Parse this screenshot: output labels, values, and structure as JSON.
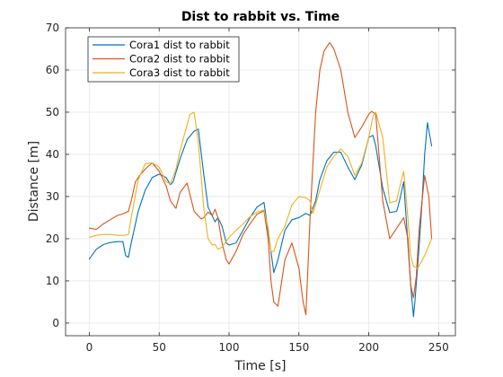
{
  "chart_data": {
    "type": "line",
    "title": "Dist to rabbit vs. Time",
    "xlabel": "Time [s]",
    "ylabel": "Distance [m]",
    "xlim": [
      -17,
      262
    ],
    "ylim": [
      -3,
      70
    ],
    "xticks": [
      0,
      50,
      100,
      150,
      200,
      250
    ],
    "yticks": [
      0,
      10,
      20,
      30,
      40,
      50,
      60,
      70
    ],
    "grid": true,
    "legend_position": "top-left",
    "series": [
      {
        "name": "Cora1 dist to rabbit",
        "color": "#0072BD",
        "x": [
          0,
          5,
          10,
          15,
          20,
          24,
          26,
          28,
          30,
          35,
          40,
          45,
          50,
          55,
          58,
          60,
          65,
          70,
          75,
          78,
          82,
          85,
          90,
          92,
          95,
          98,
          100,
          105,
          110,
          115,
          120,
          125,
          130,
          132,
          135,
          140,
          145,
          150,
          155,
          158,
          162,
          165,
          170,
          175,
          180,
          185,
          190,
          195,
          200,
          203,
          205,
          210,
          215,
          220,
          222,
          225,
          230,
          232,
          233,
          236,
          238,
          240,
          242,
          245
        ],
        "y": [
          15.2,
          17.5,
          18.6,
          19.1,
          19.3,
          19.3,
          16,
          15.6,
          19,
          26.5,
          31.5,
          34.5,
          35.3,
          34.5,
          32.8,
          33.5,
          39,
          43.5,
          45.5,
          46,
          35,
          27.5,
          24,
          25,
          23,
          19,
          18.5,
          19,
          22,
          25,
          27.5,
          28.6,
          17,
          12,
          15,
          22,
          24.5,
          25,
          26,
          25.5,
          29,
          34,
          38.5,
          40.5,
          40.5,
          37,
          34,
          37.5,
          44,
          44.5,
          42,
          32,
          26.2,
          26.5,
          29,
          33.5,
          9,
          1.5,
          5,
          18,
          28,
          40,
          47.5,
          42
        ]
      },
      {
        "name": "Cora2 dist to rabbit",
        "color": "#D95319",
        "x": [
          0,
          5,
          10,
          15,
          20,
          25,
          28,
          30,
          33,
          36,
          40,
          45,
          50,
          55,
          58,
          62,
          65,
          70,
          75,
          80,
          82,
          85,
          88,
          90,
          92,
          95,
          98,
          100,
          105,
          110,
          115,
          120,
          125,
          128,
          130,
          132,
          135,
          140,
          145,
          150,
          153,
          155,
          158,
          162,
          165,
          168,
          172,
          175,
          180,
          185,
          190,
          195,
          200,
          202,
          205,
          210,
          215,
          220,
          225,
          228,
          230,
          232,
          234,
          236,
          240,
          243,
          245
        ],
        "y": [
          22.5,
          22.2,
          23.5,
          24.5,
          25.5,
          26,
          26.5,
          29,
          33.5,
          35,
          36.5,
          38,
          36,
          32.5,
          29,
          27.2,
          31,
          33.2,
          26.5,
          24.7,
          25,
          26.3,
          25.5,
          27,
          25,
          19,
          15,
          14,
          17,
          21,
          23.5,
          25.8,
          26.6,
          20,
          10,
          5,
          4,
          15,
          19,
          13,
          5,
          2,
          25,
          50,
          60,
          64.5,
          66.5,
          65,
          60,
          50,
          44,
          46.5,
          49.5,
          50.2,
          49.5,
          29,
          20,
          22.5,
          25,
          20,
          9,
          6,
          11,
          22,
          35,
          30,
          20
        ]
      },
      {
        "name": "Cora3 dist to rabbit",
        "color": "#EDB120",
        "x": [
          0,
          5,
          10,
          15,
          20,
          25,
          28,
          30,
          35,
          40,
          45,
          50,
          55,
          58,
          62,
          65,
          70,
          72,
          75,
          78,
          82,
          85,
          88,
          90,
          92,
          95,
          100,
          105,
          110,
          115,
          120,
          125,
          128,
          130,
          132,
          135,
          140,
          145,
          150,
          155,
          158,
          160,
          165,
          170,
          175,
          180,
          185,
          190,
          195,
          200,
          203,
          205,
          210,
          215,
          220,
          222,
          225,
          228,
          230,
          232,
          235,
          240,
          245
        ],
        "y": [
          20.3,
          20.8,
          21,
          21,
          20.8,
          20.8,
          21,
          25,
          34,
          37.8,
          38,
          37,
          33.5,
          33,
          36.5,
          41,
          47,
          49.5,
          50,
          43,
          27,
          20,
          18.5,
          18.7,
          17.5,
          18,
          20.3,
          22,
          23.5,
          25.2,
          26.3,
          26.8,
          22.5,
          17,
          17,
          20,
          23,
          28,
          30,
          29.7,
          29,
          26,
          31.5,
          37,
          39.5,
          41.3,
          39.5,
          35,
          38,
          44,
          49,
          50,
          44,
          28.5,
          29,
          32,
          36,
          25,
          16,
          13.5,
          13,
          16,
          20
        ]
      }
    ]
  }
}
